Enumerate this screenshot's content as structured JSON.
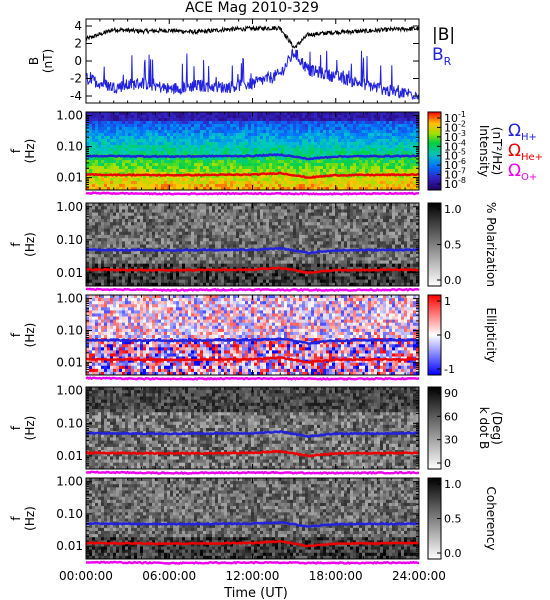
{
  "title": "ACE Mag 2010-329",
  "xaxis": {
    "label": "Time (UT)",
    "ticks": [
      "00:00:00",
      "06:00:00",
      "12:00:00",
      "18:00:00",
      "24:00:00"
    ],
    "tick_hours": [
      0,
      6,
      12,
      18,
      24
    ],
    "range_hours": [
      0,
      24
    ]
  },
  "freq_axis": {
    "label_f": "f",
    "label_unit": "(Hz)",
    "ticks": [
      "1.00",
      "0.10",
      "0.01"
    ],
    "tick_values": [
      1.0,
      0.1,
      0.01
    ],
    "range": [
      0.004,
      1.3
    ],
    "scale": "log"
  },
  "panels": [
    {
      "id": "field",
      "ylabel_main": "B",
      "ylabel_unit": "(nT)",
      "yticks": [
        "4",
        "2",
        "0",
        "-2",
        "-4"
      ],
      "ytick_values": [
        4,
        2,
        0,
        -2,
        -4
      ],
      "ylim": [
        -4.8,
        4.8
      ],
      "legend": [
        {
          "text": "|B|",
          "color": "#000000"
        },
        {
          "text": "B",
          "sub": "R",
          "color": "#2222dd"
        }
      ]
    },
    {
      "id": "intensity",
      "colorbar": "rainbow",
      "cb_ticks": [
        "10",
        "10",
        "10",
        "10",
        "10",
        "10",
        "10",
        "10"
      ],
      "cb_exps": [
        "-1",
        "-2",
        "-3",
        "-4",
        "-5",
        "-6",
        "-7",
        "-8"
      ],
      "cb_label": "Intensity",
      "cb_label2": "(nT²/Hz)",
      "legend": [
        {
          "sym": "Ω",
          "sub": "H+",
          "color": "#2222dd"
        },
        {
          "sym": "Ω",
          "sub": "He+",
          "color": "#ee0000"
        },
        {
          "sym": "Ω",
          "sub": "O+",
          "color": "#ee00ee"
        }
      ]
    },
    {
      "id": "polarization",
      "colorbar": "gray",
      "cb_ticks": [
        "1.0",
        "0.5",
        "0.0"
      ],
      "cb_label": "% Polarization"
    },
    {
      "id": "ellipticity",
      "colorbar": "bwr",
      "cb_ticks": [
        "1",
        "0",
        "-1"
      ],
      "cb_label": "Ellipticity"
    },
    {
      "id": "kdotb",
      "colorbar": "gray",
      "cb_ticks": [
        "90",
        "60",
        "30",
        "0"
      ],
      "cb_label": "k dot B",
      "cb_label2": "(Deg)"
    },
    {
      "id": "coherency",
      "colorbar": "gray",
      "cb_ticks": [
        "1.0",
        "0.5",
        "0.0"
      ],
      "cb_label": "Coherency"
    }
  ],
  "chart_data": [
    {
      "type": "line",
      "title": "ACE Mag 2010-329",
      "xlabel": "Time (UT)",
      "ylabel": "B (nT)",
      "ylim": [
        -4.8,
        4.8
      ],
      "x": [
        0,
        2,
        4,
        6,
        8,
        10,
        12,
        14,
        15,
        16,
        18,
        20,
        22,
        24
      ],
      "series": [
        {
          "name": "|B|",
          "color": "#000000",
          "values": [
            2.5,
            3.6,
            3.4,
            3.5,
            3.3,
            3.6,
            3.7,
            3.8,
            1.5,
            3.0,
            3.3,
            3.4,
            3.6,
            3.7
          ]
        },
        {
          "name": "B_R",
          "color": "#2222dd",
          "values": [
            -2.0,
            -3.0,
            -2.5,
            -3.2,
            -2.8,
            -3.0,
            -2.6,
            -1.5,
            1.0,
            -1.0,
            -1.8,
            -2.6,
            -3.5,
            -3.8
          ]
        }
      ]
    },
    {
      "type": "heatmap",
      "ylabel": "f (Hz)",
      "xlabel": "Time (UT)",
      "yscale": "log",
      "colorbar_label": "Intensity (nT²/Hz)",
      "colorbar_range": [
        1e-08,
        0.1
      ],
      "overlays": [
        {
          "name": "ΩH+",
          "color": "#2222dd",
          "x": [
            0,
            6,
            12,
            14,
            16,
            18,
            24
          ],
          "values": [
            0.05,
            0.048,
            0.05,
            0.055,
            0.04,
            0.048,
            0.05
          ]
        },
        {
          "name": "ΩHe+",
          "color": "#ee0000",
          "x": [
            0,
            6,
            12,
            14,
            16,
            18,
            24
          ],
          "values": [
            0.0125,
            0.012,
            0.0125,
            0.014,
            0.01,
            0.012,
            0.0125
          ]
        },
        {
          "name": "ΩO+",
          "color": "#ee00ee",
          "x": [
            0,
            6,
            12,
            18,
            24
          ],
          "values": [
            0.0032,
            0.003,
            0.0031,
            0.003,
            0.0031
          ]
        }
      ]
    },
    {
      "type": "heatmap",
      "ylabel": "f (Hz)",
      "colorbar_label": "% Polarization",
      "colorbar_range": [
        0.0,
        1.0
      ]
    },
    {
      "type": "heatmap",
      "ylabel": "f (Hz)",
      "colorbar_label": "Ellipticity",
      "colorbar_range": [
        -1,
        1
      ]
    },
    {
      "type": "heatmap",
      "ylabel": "f (Hz)",
      "colorbar_label": "k dot B (Deg)",
      "colorbar_range": [
        0,
        90
      ]
    },
    {
      "type": "heatmap",
      "ylabel": "f (Hz)",
      "colorbar_label": "Coherency",
      "colorbar_range": [
        0.0,
        1.0
      ]
    }
  ]
}
